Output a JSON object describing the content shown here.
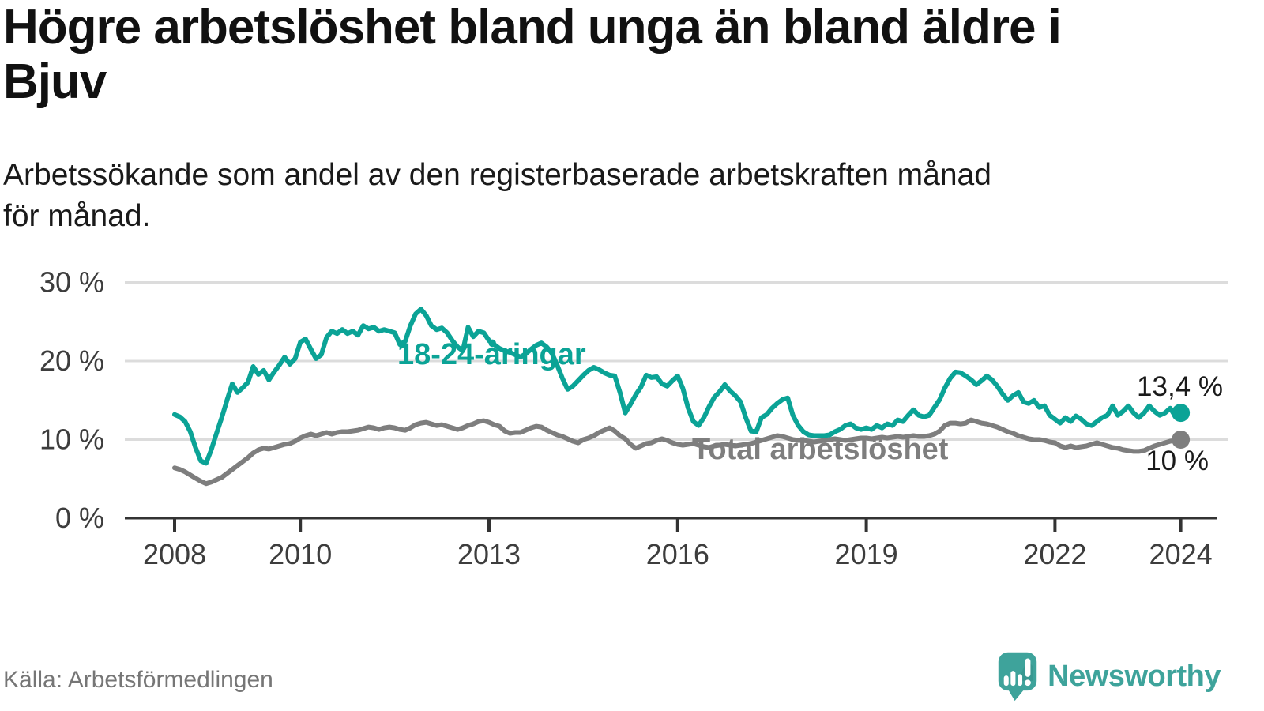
{
  "header": {
    "title_lines": [
      "Högre arbetslöshet bland unga än bland äldre i",
      "Bjuv"
    ],
    "subtitle_lines": [
      "Arbetssökande som andel av den registerbaserade arbetskraften månad",
      "för månad."
    ]
  },
  "chart_data": {
    "type": "line",
    "title": "",
    "unit": "%",
    "frequency": "monthly",
    "x_start": {
      "year": 2008,
      "month": 1
    },
    "x_end": {
      "year": 2024,
      "month": 1
    },
    "x_axis": {
      "ticks": [
        {
          "year": 2008,
          "label": "2008"
        },
        {
          "year": 2010,
          "label": "2010"
        },
        {
          "year": 2013,
          "label": "2013"
        },
        {
          "year": 2016,
          "label": "2016"
        },
        {
          "year": 2019,
          "label": "2019"
        },
        {
          "year": 2022,
          "label": "2022"
        },
        {
          "year": 2024,
          "label": "2024"
        }
      ]
    },
    "y_axis": {
      "range": [
        0,
        32
      ],
      "grid": true,
      "ticks": [
        {
          "value": 0,
          "label": "0 %"
        },
        {
          "value": 10,
          "label": "10 %"
        },
        {
          "value": 20,
          "label": "20 %"
        },
        {
          "value": 30,
          "label": "30 %"
        }
      ]
    },
    "series": [
      {
        "name": "18-24-åringar",
        "color": "#0BA396",
        "end_label": "13,4 %",
        "end_value": 13.4,
        "values": [
          13.2,
          12.9,
          12.3,
          11.0,
          9.0,
          7.3,
          7.0,
          8.7,
          10.8,
          12.8,
          15.0,
          17.1,
          16.0,
          16.6,
          17.3,
          19.3,
          18.3,
          18.8,
          17.6,
          18.6,
          19.5,
          20.5,
          19.6,
          20.3,
          22.4,
          22.8,
          21.5,
          20.3,
          20.8,
          23.0,
          23.8,
          23.5,
          24.0,
          23.5,
          23.8,
          23.3,
          24.5,
          24.1,
          24.3,
          23.8,
          24.0,
          23.8,
          23.6,
          22.1,
          22.5,
          24.5,
          26.0,
          26.6,
          25.8,
          24.5,
          24.0,
          24.2,
          23.6,
          22.6,
          21.8,
          21.3,
          24.3,
          23.1,
          23.8,
          23.6,
          22.6,
          22.1,
          21.6,
          21.3,
          21.1,
          20.8,
          20.5,
          20.9,
          21.5,
          22.0,
          22.3,
          21.8,
          21.0,
          19.5,
          17.8,
          16.4,
          16.8,
          17.5,
          18.2,
          18.8,
          19.2,
          18.9,
          18.5,
          18.2,
          18.1,
          16.0,
          13.4,
          14.5,
          15.7,
          16.7,
          18.2,
          17.9,
          18.0,
          17.1,
          16.8,
          17.5,
          18.1,
          16.5,
          14.0,
          12.3,
          11.8,
          12.8,
          14.2,
          15.4,
          16.1,
          17.0,
          16.2,
          15.6,
          14.8,
          12.8,
          11.1,
          11.0,
          12.8,
          13.2,
          14.0,
          14.6,
          15.1,
          15.3,
          13.1,
          11.8,
          11.0,
          10.6,
          10.5,
          10.5,
          10.5,
          10.6,
          11.0,
          11.3,
          11.8,
          12.0,
          11.5,
          11.3,
          11.5,
          11.3,
          11.8,
          11.5,
          12.0,
          11.8,
          12.5,
          12.3,
          13.1,
          13.8,
          13.1,
          12.9,
          13.1,
          14.1,
          15.1,
          16.6,
          17.8,
          18.6,
          18.5,
          18.1,
          17.6,
          17.0,
          17.5,
          18.1,
          17.6,
          16.8,
          15.8,
          15.0,
          15.6,
          16.0,
          14.8,
          14.6,
          15.0,
          14.1,
          14.3,
          13.1,
          12.6,
          12.1,
          12.8,
          12.3,
          13.0,
          12.6,
          12.0,
          11.8,
          12.3,
          12.8,
          13.1,
          14.3,
          13.1,
          13.6,
          14.3,
          13.4,
          12.8,
          13.4,
          14.3,
          13.6,
          13.1,
          13.4,
          14.0,
          12.9,
          13.4
        ]
      },
      {
        "name": "Total arbetslöshet",
        "color": "#7E7E7E",
        "end_label": "10 %",
        "end_value": 10.0,
        "values": [
          6.4,
          6.2,
          5.9,
          5.5,
          5.1,
          4.7,
          4.4,
          4.6,
          4.9,
          5.2,
          5.7,
          6.2,
          6.7,
          7.2,
          7.7,
          8.3,
          8.7,
          8.9,
          8.8,
          9.0,
          9.2,
          9.4,
          9.5,
          9.8,
          10.2,
          10.5,
          10.7,
          10.5,
          10.7,
          10.9,
          10.7,
          10.9,
          11.0,
          11.0,
          11.1,
          11.2,
          11.4,
          11.6,
          11.5,
          11.3,
          11.5,
          11.6,
          11.5,
          11.3,
          11.2,
          11.5,
          11.9,
          12.1,
          12.2,
          12.0,
          11.8,
          11.9,
          11.7,
          11.5,
          11.3,
          11.5,
          11.8,
          12.0,
          12.3,
          12.4,
          12.2,
          11.9,
          11.7,
          11.1,
          10.8,
          10.9,
          10.9,
          11.2,
          11.5,
          11.7,
          11.6,
          11.2,
          10.9,
          10.6,
          10.4,
          10.1,
          9.8,
          9.6,
          10.0,
          10.2,
          10.5,
          10.9,
          11.2,
          11.5,
          11.1,
          10.5,
          10.1,
          9.4,
          8.9,
          9.2,
          9.5,
          9.6,
          9.9,
          10.1,
          9.9,
          9.6,
          9.4,
          9.3,
          9.4,
          9.5,
          9.3,
          9.1,
          9.0,
          9.2,
          9.3,
          9.4,
          9.3,
          9.2,
          9.3,
          9.4,
          9.5,
          9.7,
          9.9,
          10.1,
          10.3,
          10.5,
          10.4,
          10.2,
          10.0,
          9.9,
          9.9,
          9.8,
          9.7,
          9.8,
          9.9,
          10.0,
          10.1,
          10.0,
          9.9,
          10.0,
          10.1,
          10.2,
          10.2,
          10.1,
          10.2,
          10.3,
          10.2,
          10.3,
          10.4,
          10.3,
          10.4,
          10.5,
          10.4,
          10.4,
          10.5,
          10.7,
          11.1,
          11.8,
          12.1,
          12.1,
          12.0,
          12.1,
          12.5,
          12.3,
          12.1,
          12.0,
          11.8,
          11.6,
          11.3,
          11.0,
          10.8,
          10.5,
          10.3,
          10.1,
          10.0,
          10.0,
          9.9,
          9.7,
          9.6,
          9.2,
          9.0,
          9.2,
          9.0,
          9.1,
          9.2,
          9.4,
          9.6,
          9.4,
          9.2,
          9.0,
          8.9,
          8.7,
          8.6,
          8.5,
          8.5,
          8.6,
          8.9,
          9.2,
          9.4,
          9.6,
          9.8,
          9.9,
          10.0
        ]
      }
    ],
    "legend_position": "inline"
  },
  "colors": {
    "grid": "#DCDCDC",
    "axis": "#333333",
    "tick_label": "#3D3D3D",
    "brand": "#3EA39B"
  },
  "footer": {
    "source": "Källa: Arbetsförmedlingen",
    "brand": "Newsworthy"
  }
}
